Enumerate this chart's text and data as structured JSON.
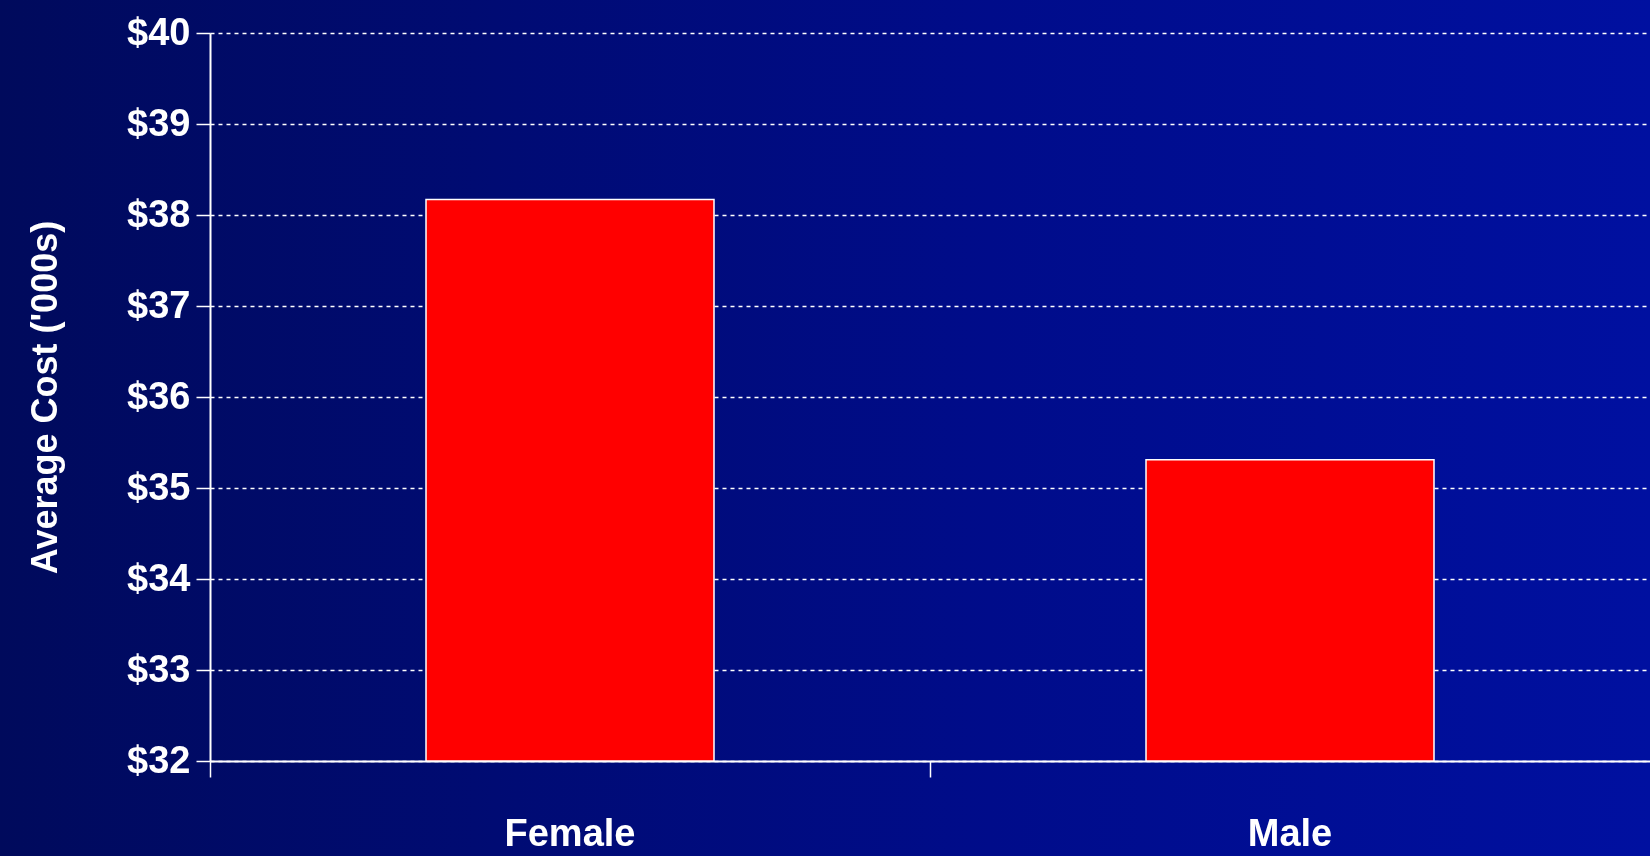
{
  "chart_data": {
    "type": "bar",
    "ylabel": "Average Cost ('000s)",
    "categories": [
      "Female",
      "Male"
    ],
    "values": [
      38.17,
      35.31
    ],
    "color": "#ff0000",
    "ylim": [
      32,
      40
    ],
    "yticks": [
      {
        "value": 32,
        "label": "$32"
      },
      {
        "value": 33,
        "label": "$33"
      },
      {
        "value": 34,
        "label": "$34"
      },
      {
        "value": 35,
        "label": "$35"
      },
      {
        "value": 36,
        "label": "$36"
      },
      {
        "value": 37,
        "label": "$37"
      },
      {
        "value": 38,
        "label": "$38"
      },
      {
        "value": 39,
        "label": "$39"
      },
      {
        "value": 40,
        "label": "$40"
      }
    ],
    "grid": "y"
  }
}
